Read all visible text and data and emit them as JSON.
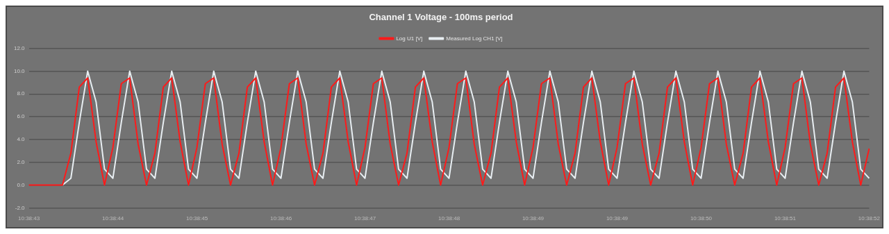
{
  "chart_data": {
    "type": "line",
    "title": "Channel 1 Voltage - 100ms period",
    "categories": [
      "10:38:43",
      null,
      null,
      null,
      null,
      null,
      null,
      null,
      null,
      null,
      "10:38:44",
      null,
      null,
      null,
      null,
      null,
      null,
      null,
      null,
      null,
      "10:38:45",
      null,
      null,
      null,
      null,
      null,
      null,
      null,
      null,
      null,
      "10:38:46",
      null,
      null,
      null,
      null,
      null,
      null,
      null,
      null,
      null,
      "10:38:47",
      null,
      null,
      null,
      null,
      null,
      null,
      null,
      null,
      null,
      "10:38:48",
      null,
      null,
      null,
      null,
      null,
      null,
      null,
      null,
      null,
      "10:38:49",
      null,
      null,
      null,
      null,
      null,
      null,
      null,
      null,
      null,
      "10:38:49",
      null,
      null,
      null,
      null,
      null,
      null,
      null,
      null,
      null,
      "10:38:50",
      null,
      null,
      null,
      null,
      null,
      null,
      null,
      null,
      null,
      "10:38:51",
      null,
      null,
      null,
      null,
      null,
      null,
      null,
      null,
      null,
      "10:38:52"
    ],
    "series": [
      {
        "name": "Log U1 [V]",
        "color": "#ff1a1a",
        "values": [
          0,
          0,
          0,
          0,
          0,
          2.8,
          8.6,
          9.4,
          3.8,
          0,
          3.3,
          8.9,
          9.4,
          3.6,
          0,
          2.8,
          8.6,
          9.4,
          3.8,
          0,
          3.3,
          8.9,
          9.4,
          3.6,
          0,
          2.8,
          8.6,
          9.4,
          3.8,
          0,
          3.3,
          8.9,
          9.4,
          3.6,
          0,
          2.8,
          8.6,
          9.4,
          3.8,
          0,
          3.3,
          8.9,
          9.4,
          3.6,
          0,
          2.8,
          8.6,
          9.4,
          3.8,
          0,
          3.3,
          8.9,
          9.4,
          3.6,
          0,
          2.8,
          8.6,
          9.4,
          3.8,
          0,
          3.3,
          8.9,
          9.4,
          3.6,
          0,
          2.8,
          8.6,
          9.4,
          3.8,
          0,
          3.3,
          8.9,
          9.4,
          3.6,
          0,
          2.8,
          8.6,
          9.4,
          3.8,
          0,
          3.3,
          8.9,
          9.4,
          3.6,
          0,
          2.8,
          8.6,
          9.4,
          3.8,
          0,
          3.3,
          8.9,
          9.4,
          3.6,
          0,
          2.8,
          8.6,
          9.4,
          3.8,
          0,
          3.2
        ]
      },
      {
        "name": "Measured Log CH1 [V]",
        "color": "#e8eef2",
        "values": [
          null,
          null,
          null,
          null,
          0,
          0.6,
          5.5,
          10.0,
          7.3,
          1.4,
          0.6,
          5.5,
          10.0,
          7.3,
          1.4,
          0.6,
          5.5,
          10.0,
          7.3,
          1.4,
          0.6,
          5.5,
          10.0,
          7.3,
          1.4,
          0.6,
          5.5,
          10.0,
          7.3,
          1.4,
          0.6,
          5.5,
          10.0,
          7.3,
          1.4,
          0.6,
          5.5,
          10.0,
          7.3,
          1.4,
          0.6,
          5.5,
          10.0,
          7.3,
          1.4,
          0.6,
          5.5,
          10.0,
          7.3,
          1.4,
          0.6,
          5.5,
          10.0,
          7.3,
          1.4,
          0.6,
          5.5,
          10.0,
          7.3,
          1.4,
          0.6,
          5.5,
          10.0,
          7.3,
          1.4,
          0.6,
          5.5,
          10.0,
          7.3,
          1.4,
          0.6,
          5.5,
          10.0,
          7.3,
          1.4,
          0.6,
          5.5,
          10.0,
          7.3,
          1.4,
          0.6,
          5.5,
          10.0,
          7.3,
          1.4,
          0.6,
          5.5,
          10.0,
          7.3,
          1.4,
          0.6,
          5.5,
          10.0,
          7.3,
          1.4,
          0.6,
          5.5,
          10.0,
          7.3,
          1.4,
          0.6
        ]
      }
    ],
    "ylim": [
      -2,
      12
    ],
    "yticks": [
      {
        "value": -2,
        "label": "-2.0"
      },
      {
        "value": 0,
        "label": "0.0"
      },
      {
        "value": 2,
        "label": "2.0"
      },
      {
        "value": 4,
        "label": "4.0"
      },
      {
        "value": 6,
        "label": "6.0"
      },
      {
        "value": 8,
        "label": "8.0"
      },
      {
        "value": 10,
        "label": "10.0"
      },
      {
        "value": 12,
        "label": "12.0"
      }
    ],
    "grid": "y",
    "legend": "top",
    "marker": "none",
    "line_style": "solid"
  }
}
